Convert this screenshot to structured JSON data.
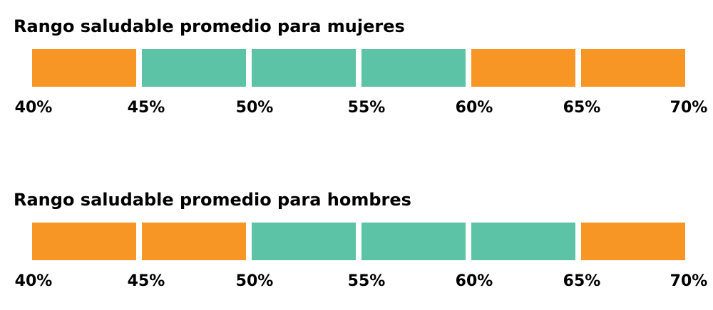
{
  "colors": {
    "outside": "#F79625",
    "healthy": "#5CC3A6"
  },
  "sections": [
    {
      "title": "Rango saludable promedio para mujeres",
      "segments": [
        "outside",
        "healthy",
        "healthy",
        "healthy",
        "outside",
        "outside"
      ],
      "healthy_range": [
        45,
        60
      ],
      "ticks": [
        "40%",
        "45%",
        "50%",
        "55%",
        "60%",
        "65%",
        "70%"
      ]
    },
    {
      "title": "Rango saludable promedio para hombres",
      "segments": [
        "outside",
        "outside",
        "healthy",
        "healthy",
        "healthy",
        "outside"
      ],
      "healthy_range": [
        50,
        65
      ],
      "ticks": [
        "40%",
        "45%",
        "50%",
        "55%",
        "60%",
        "65%",
        "70%"
      ]
    }
  ]
}
